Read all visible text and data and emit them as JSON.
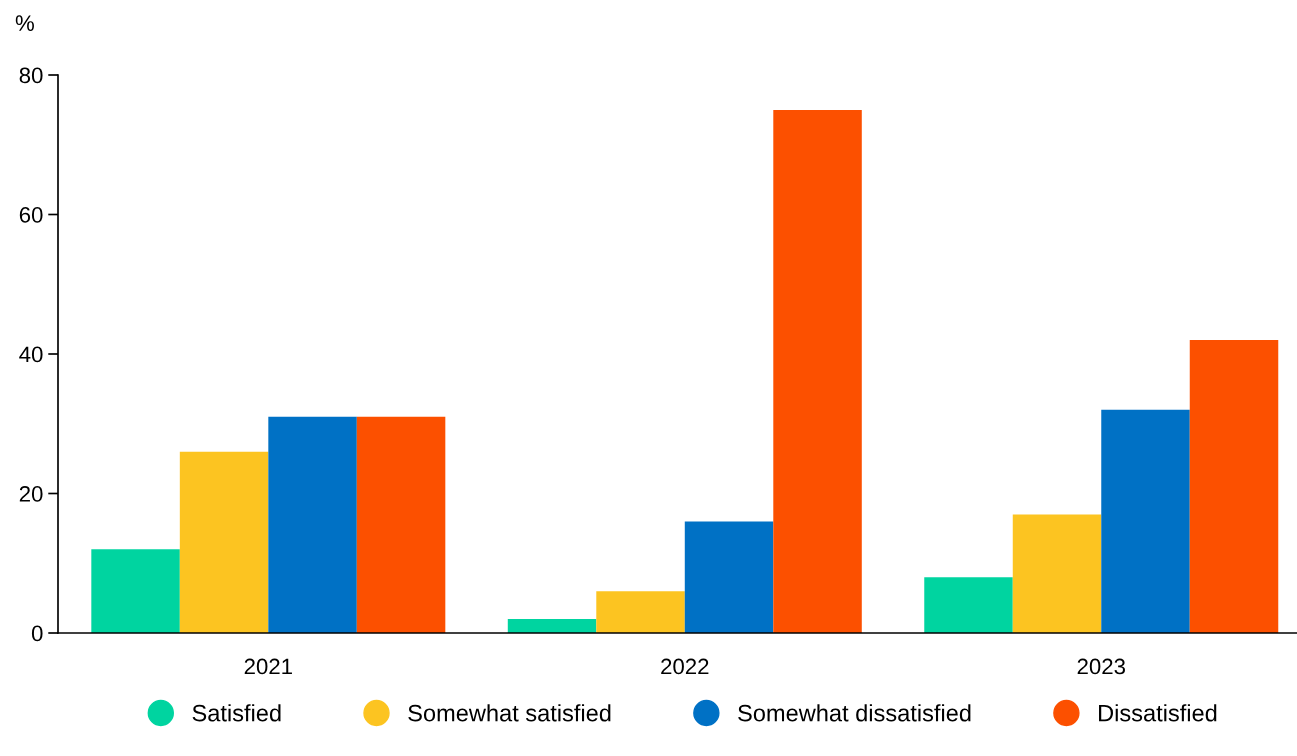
{
  "chart_data": {
    "type": "bar",
    "ylabel": "%",
    "categories": [
      "2021",
      "2022",
      "2023"
    ],
    "series": [
      {
        "name": "Satisfied",
        "color": "#00d4a0",
        "values": [
          12,
          2,
          8
        ]
      },
      {
        "name": "Somewhat satisfied",
        "color": "#fcc421",
        "values": [
          26,
          6,
          17
        ]
      },
      {
        "name": "Somewhat dissatisfied",
        "color": "#0071c5",
        "values": [
          31,
          16,
          32
        ]
      },
      {
        "name": "Dissatisfied",
        "color": "#fc5000",
        "values": [
          31,
          75,
          42
        ]
      }
    ],
    "ylim": [
      0,
      80
    ],
    "yticks": [
      0,
      20,
      40,
      60,
      80
    ],
    "grid": false,
    "legend": "bottom",
    "marker": "circle"
  }
}
